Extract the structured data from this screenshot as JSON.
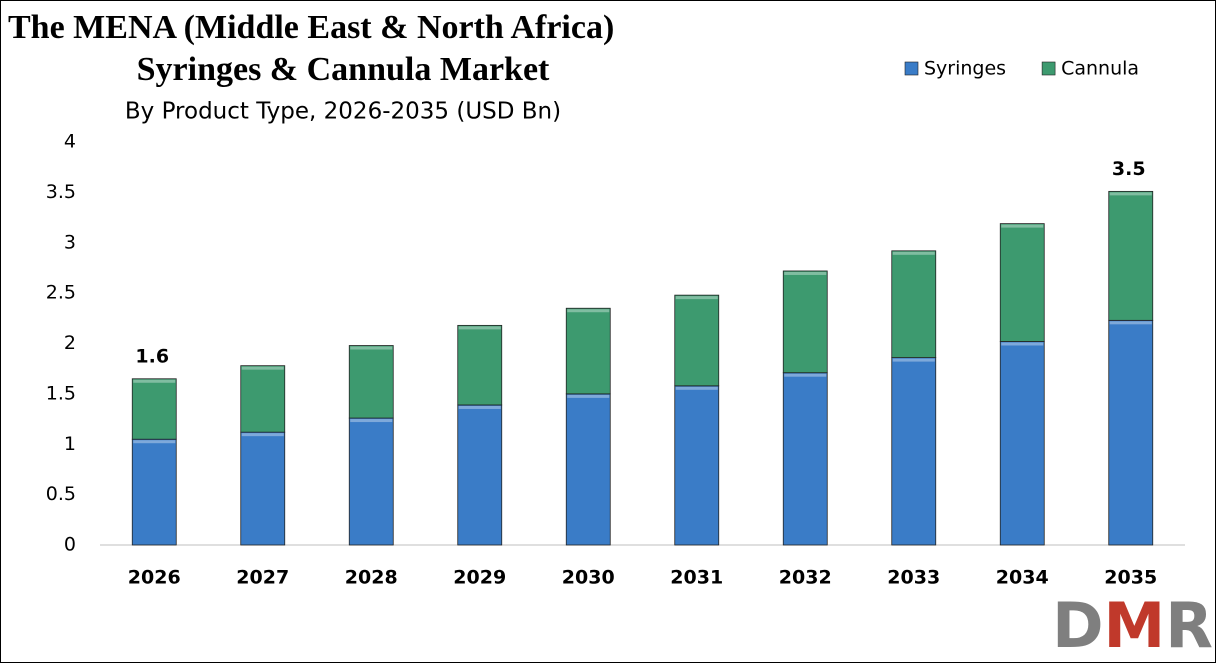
{
  "chart_data": {
    "type": "stacked_bar",
    "title_lines": [
      "The MENA (Middle East & North Africa)",
      "Syringes & Cannula Market"
    ],
    "subtitle": "By Product Type, 2026-2035 (USD Bn)",
    "categories": [
      "2026",
      "2027",
      "2028",
      "2029",
      "2030",
      "2031",
      "2032",
      "2033",
      "2034",
      "2035"
    ],
    "series": [
      {
        "name": "Syringes",
        "color": "#3a7cc7",
        "values": [
          1.05,
          1.12,
          1.26,
          1.39,
          1.5,
          1.58,
          1.71,
          1.86,
          2.02,
          2.23
        ]
      },
      {
        "name": "Cannula",
        "color": "#3d9a6f",
        "values": [
          0.6,
          0.66,
          0.72,
          0.79,
          0.85,
          0.9,
          1.01,
          1.06,
          1.17,
          1.28
        ]
      }
    ],
    "annotations": [
      {
        "category": "2026",
        "text": "1.6"
      },
      {
        "category": "2035",
        "text": "3.5"
      }
    ],
    "ylim": [
      0,
      4
    ],
    "yticks": [
      0,
      0.5,
      1,
      1.5,
      2,
      2.5,
      3,
      3.5,
      4
    ],
    "grid": false,
    "legend": "top-right",
    "logo": "DMR"
  }
}
